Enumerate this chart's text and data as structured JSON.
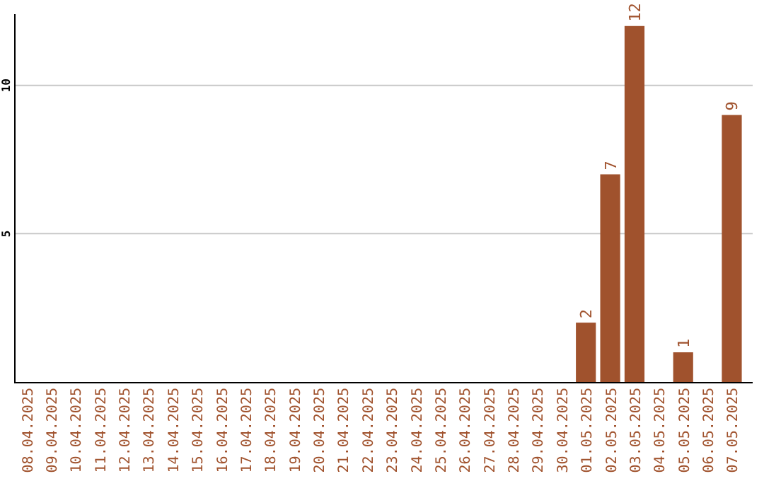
{
  "chart_data": {
    "type": "bar",
    "categories": [
      "08.04.2025",
      "09.04.2025",
      "10.04.2025",
      "11.04.2025",
      "12.04.2025",
      "13.04.2025",
      "14.04.2025",
      "15.04.2025",
      "16.04.2025",
      "17.04.2025",
      "18.04.2025",
      "19.04.2025",
      "20.04.2025",
      "21.04.2025",
      "22.04.2025",
      "23.04.2025",
      "24.04.2025",
      "25.04.2025",
      "26.04.2025",
      "27.04.2025",
      "28.04.2025",
      "29.04.2025",
      "30.04.2025",
      "01.05.2025",
      "02.05.2025",
      "03.05.2025",
      "04.05.2025",
      "05.05.2025",
      "06.05.2025",
      "07.05.2025"
    ],
    "values": [
      0,
      0,
      0,
      0,
      0,
      0,
      0,
      0,
      0,
      0,
      0,
      0,
      0,
      0,
      0,
      0,
      0,
      0,
      0,
      0,
      0,
      0,
      0,
      2,
      7,
      12,
      0,
      1,
      0,
      9
    ],
    "value_labels": [
      null,
      null,
      null,
      null,
      null,
      null,
      null,
      null,
      null,
      null,
      null,
      null,
      null,
      null,
      null,
      null,
      null,
      null,
      null,
      null,
      null,
      null,
      null,
      "2",
      "7",
      "12",
      null,
      "1",
      null,
      "9"
    ],
    "color": "#a0522d",
    "ylim": [
      0,
      12.4
    ],
    "yticks": [
      5,
      10
    ],
    "grid": "y"
  }
}
